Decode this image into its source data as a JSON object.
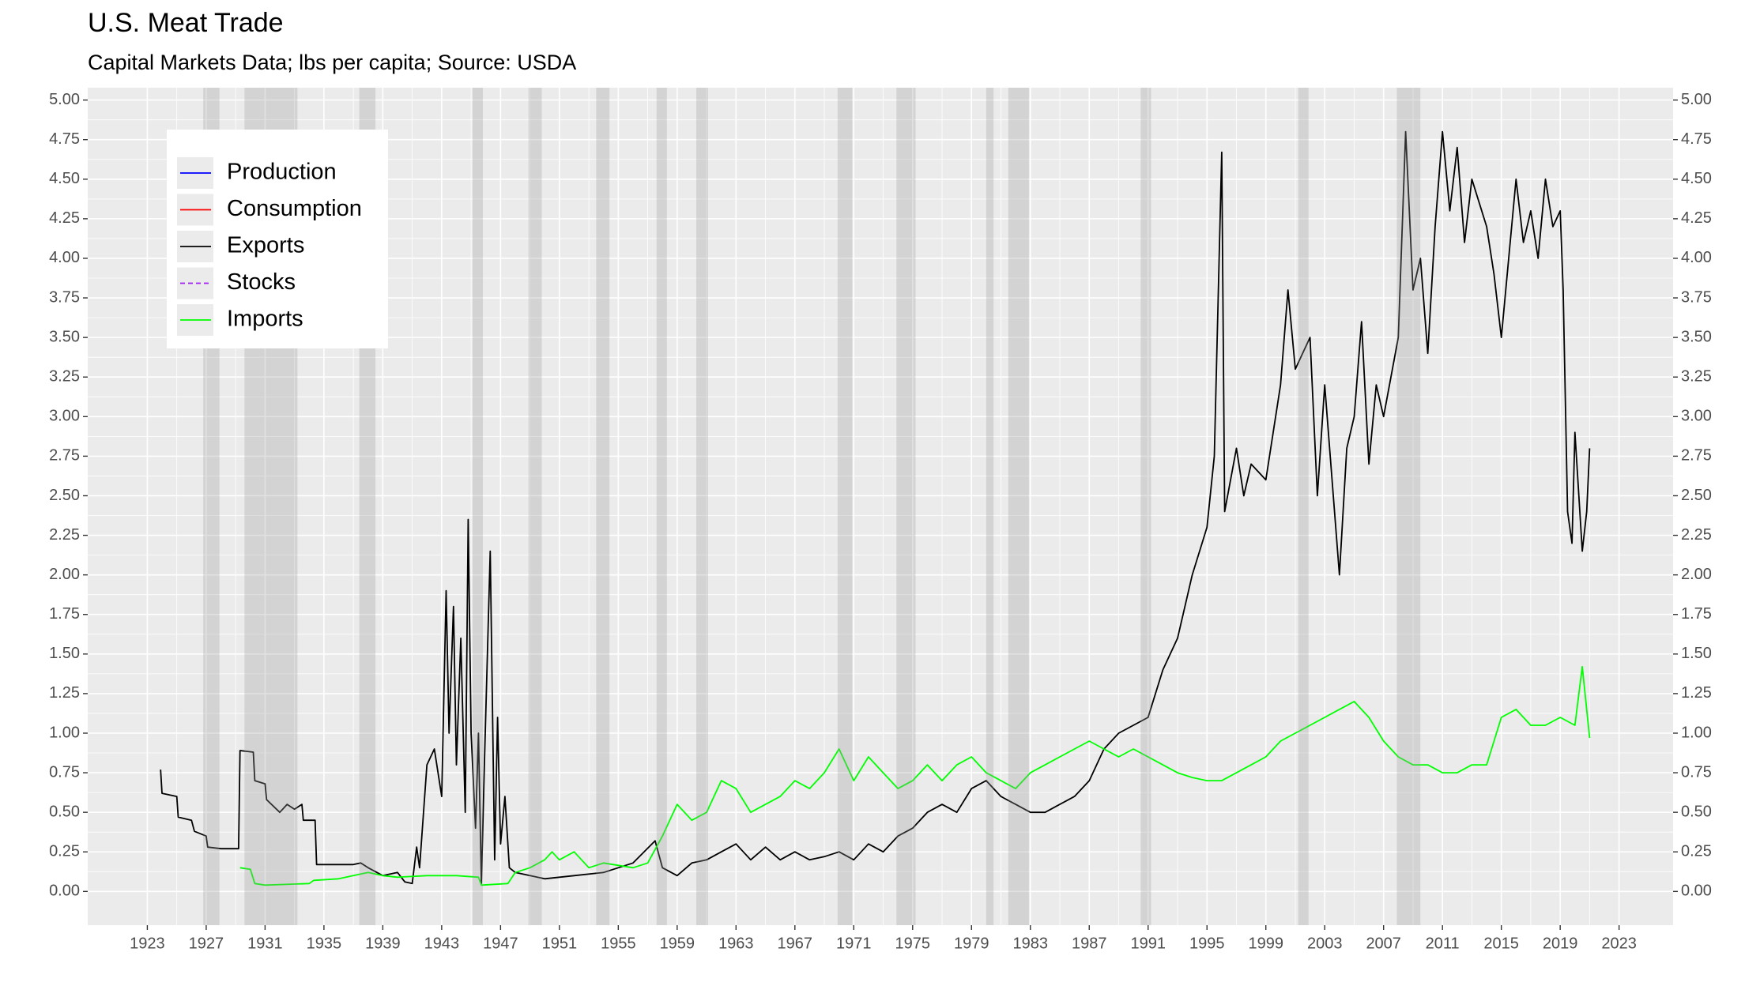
{
  "chart_data": {
    "type": "line",
    "title": "U.S. Meat Trade",
    "subtitle": "Capital Markets Data; lbs per capita; Source: USDA",
    "xlim": [
      1918.95,
      2026.67
    ],
    "ylim": [
      -0.213,
      5.078
    ],
    "y2lim": [
      -0.213,
      5.078
    ],
    "xticks": [
      1923,
      1927,
      1931,
      1935,
      1939,
      1943,
      1947,
      1951,
      1955,
      1959,
      1963,
      1967,
      1971,
      1975,
      1979,
      1983,
      1987,
      1991,
      1995,
      1999,
      2003,
      2007,
      2011,
      2015,
      2019,
      2023
    ],
    "yticks": [
      {
        "value": 0,
        "label": "0.00"
      },
      {
        "value": 0.25,
        "label": "0.25"
      },
      {
        "value": 0.5,
        "label": "0.50"
      },
      {
        "value": 0.75,
        "label": "0.75"
      },
      {
        "value": 1,
        "label": "1.00"
      },
      {
        "value": 1.25,
        "label": "1.25"
      },
      {
        "value": 1.5,
        "label": "1.50"
      },
      {
        "value": 1.75,
        "label": "1.75"
      },
      {
        "value": 2,
        "label": "2.00"
      },
      {
        "value": 2.25,
        "label": "2.25"
      },
      {
        "value": 2.5,
        "label": "2.50"
      },
      {
        "value": 2.75,
        "label": "2.75"
      },
      {
        "value": 3,
        "label": "3.00"
      },
      {
        "value": 3.25,
        "label": "3.25"
      },
      {
        "value": 3.5,
        "label": "3.50"
      },
      {
        "value": 3.75,
        "label": "3.75"
      },
      {
        "value": 4,
        "label": "4.00"
      },
      {
        "value": 4.25,
        "label": "4.25"
      },
      {
        "value": 4.5,
        "label": "4.50"
      },
      {
        "value": 4.75,
        "label": "4.75"
      },
      {
        "value": 5,
        "label": "5.00"
      }
    ],
    "y2ticks": [
      {
        "value": 0,
        "label": "0.00"
      },
      {
        "value": 0.25,
        "label": "0.25"
      },
      {
        "value": 0.5,
        "label": "0.50"
      },
      {
        "value": 0.75,
        "label": "0.75"
      },
      {
        "value": 1,
        "label": "1.00"
      },
      {
        "value": 1.25,
        "label": "1.25"
      },
      {
        "value": 1.5,
        "label": "1.50"
      },
      {
        "value": 1.75,
        "label": "1.75"
      },
      {
        "value": 2,
        "label": "2.00"
      },
      {
        "value": 2.25,
        "label": "2.25"
      },
      {
        "value": 2.5,
        "label": "2.50"
      },
      {
        "value": 2.75,
        "label": "2.75"
      },
      {
        "value": 3,
        "label": "3.00"
      },
      {
        "value": 3.25,
        "label": "3.25"
      },
      {
        "value": 3.5,
        "label": "3.50"
      },
      {
        "value": 3.75,
        "label": "3.75"
      },
      {
        "value": 4,
        "label": "4.00"
      },
      {
        "value": 4.25,
        "label": "4.25"
      },
      {
        "value": 4.5,
        "label": "4.50"
      },
      {
        "value": 4.75,
        "label": "4.75"
      },
      {
        "value": 5,
        "label": "5.00"
      }
    ],
    "grid": true,
    "legend": "top-left",
    "shaded_periods": [
      [
        1926.8,
        1927.9
      ],
      [
        1929.6,
        1933.2
      ],
      [
        1937.4,
        1938.5
      ],
      [
        1945.1,
        1945.8
      ],
      [
        1948.9,
        1949.8
      ],
      [
        1953.5,
        1954.4
      ],
      [
        1957.6,
        1958.3
      ],
      [
        1960.3,
        1961.1
      ],
      [
        1969.9,
        1970.9
      ],
      [
        1973.9,
        1975.2
      ],
      [
        1980.0,
        1980.5
      ],
      [
        1981.5,
        1982.9
      ],
      [
        1990.5,
        1991.2
      ],
      [
        2001.2,
        2001.9
      ],
      [
        2007.9,
        2009.5
      ]
    ],
    "series": [
      {
        "name": "Production",
        "color": "#0000ff",
        "x": [],
        "values": []
      },
      {
        "name": "Consumption",
        "color": "#ff0000",
        "x": [],
        "values": []
      },
      {
        "name": "Exports",
        "color": "#000000",
        "x": [
          1923.9,
          1924,
          1925,
          1925.1,
          1926,
          1926.2,
          1927,
          1927.1,
          1928,
          1929.2,
          1929.3,
          1930.2,
          1930.3,
          1931,
          1931.1,
          1932,
          1932.5,
          1933,
          1933.5,
          1933.6,
          1934.4,
          1934.5,
          1937,
          1937.5,
          1938,
          1939,
          1940,
          1940.5,
          1941,
          1941.3,
          1941.5,
          1942,
          1942.5,
          1943,
          1943.3,
          1943.5,
          1943.8,
          1944,
          1944.3,
          1944.6,
          1944.8,
          1945,
          1945.3,
          1945.5,
          1945.7,
          1945.9,
          1946.3,
          1946.6,
          1946.8,
          1947,
          1947.3,
          1947.6,
          1948,
          1949,
          1950,
          1952,
          1954,
          1956,
          1957.5,
          1958,
          1959,
          1960,
          1961,
          1962,
          1963,
          1964,
          1965,
          1966,
          1967,
          1968,
          1969,
          1970,
          1971,
          1972,
          1973,
          1974,
          1975,
          1976,
          1977,
          1978,
          1979,
          1980,
          1981,
          1982,
          1983,
          1984,
          1985,
          1986,
          1987,
          1988,
          1989,
          1990,
          1991,
          1992,
          1993,
          1994,
          1995,
          1995.5,
          1996,
          1996.2,
          1997,
          1997.5,
          1998,
          1999,
          2000,
          2000.5,
          2001,
          2002,
          2002.5,
          2003,
          2004,
          2004.5,
          2005,
          2005.5,
          2006,
          2006.5,
          2007,
          2008,
          2008.5,
          2009,
          2009.5,
          2010,
          2010.5,
          2011,
          2011.5,
          2012,
          2012.5,
          2013,
          2014,
          2014.5,
          2015,
          2015.5,
          2016,
          2016.5,
          2017,
          2017.5,
          2018,
          2018.5,
          2019,
          2019.2,
          2019.5,
          2019.8,
          2020,
          2020.5,
          2020.8,
          2021
        ],
        "values": [
          0.77,
          0.62,
          0.6,
          0.47,
          0.45,
          0.38,
          0.35,
          0.28,
          0.27,
          0.27,
          0.89,
          0.88,
          0.7,
          0.68,
          0.58,
          0.5,
          0.55,
          0.52,
          0.55,
          0.45,
          0.45,
          0.17,
          0.17,
          0.18,
          0.15,
          0.1,
          0.12,
          0.06,
          0.05,
          0.28,
          0.15,
          0.8,
          0.9,
          0.6,
          1.9,
          1.0,
          1.8,
          0.8,
          1.6,
          0.5,
          2.35,
          1.0,
          0.4,
          1.0,
          0.05,
          0.8,
          2.15,
          0.2,
          1.1,
          0.3,
          0.6,
          0.15,
          0.12,
          0.1,
          0.08,
          0.1,
          0.12,
          0.18,
          0.32,
          0.15,
          0.1,
          0.18,
          0.2,
          0.25,
          0.3,
          0.2,
          0.28,
          0.2,
          0.25,
          0.2,
          0.22,
          0.25,
          0.2,
          0.3,
          0.25,
          0.35,
          0.4,
          0.5,
          0.55,
          0.5,
          0.65,
          0.7,
          0.6,
          0.55,
          0.5,
          0.5,
          0.55,
          0.6,
          0.7,
          0.9,
          1.0,
          1.05,
          1.1,
          1.4,
          1.6,
          2.0,
          2.3,
          2.75,
          4.67,
          2.4,
          2.8,
          2.5,
          2.7,
          2.6,
          3.2,
          3.8,
          3.3,
          3.5,
          2.5,
          3.2,
          2.0,
          2.8,
          3.0,
          3.6,
          2.7,
          3.2,
          3.0,
          3.5,
          4.8,
          3.8,
          4.0,
          3.4,
          4.2,
          4.8,
          4.3,
          4.7,
          4.1,
          4.5,
          4.2,
          3.9,
          3.5,
          4.0,
          4.5,
          4.1,
          4.3,
          4.0,
          4.5,
          4.2,
          4.3,
          3.8,
          2.4,
          2.2,
          2.9,
          2.15,
          2.4,
          2.8
        ]
      },
      {
        "name": "Stocks",
        "color": "#a020f0",
        "linestyle": "dashed",
        "x": [],
        "values": []
      },
      {
        "name": "Imports",
        "color": "#00ff00",
        "x": [
          1929.3,
          1930,
          1930.3,
          1931,
          1934,
          1934.3,
          1936,
          1937,
          1938,
          1939,
          1940,
          1942,
          1944,
          1945.5,
          1945.7,
          1947.5,
          1948,
          1949,
          1950,
          1950.5,
          1951,
          1952,
          1953,
          1954,
          1956,
          1957,
          1958,
          1959,
          1960,
          1961,
          1962,
          1963,
          1964,
          1965,
          1966,
          1967,
          1968,
          1969,
          1970,
          1971,
          1972,
          1973,
          1974,
          1975,
          1976,
          1977,
          1978,
          1979,
          1980,
          1981,
          1982,
          1983,
          1984,
          1985,
          1986,
          1987,
          1988,
          1989,
          1990,
          1991,
          1992,
          1993,
          1994,
          1995,
          1996,
          1997,
          1998,
          1999,
          2000,
          2001,
          2002,
          2003,
          2004,
          2005,
          2006,
          2007,
          2008,
          2009,
          2010,
          2011,
          2012,
          2013,
          2014,
          2015,
          2016,
          2017,
          2018,
          2019,
          2020,
          2020.5,
          2021
        ],
        "values": [
          0.15,
          0.14,
          0.05,
          0.04,
          0.05,
          0.07,
          0.08,
          0.1,
          0.12,
          0.1,
          0.09,
          0.1,
          0.1,
          0.09,
          0.04,
          0.05,
          0.12,
          0.15,
          0.2,
          0.25,
          0.2,
          0.25,
          0.15,
          0.18,
          0.15,
          0.18,
          0.35,
          0.55,
          0.45,
          0.5,
          0.7,
          0.65,
          0.5,
          0.55,
          0.6,
          0.7,
          0.65,
          0.75,
          0.9,
          0.7,
          0.85,
          0.75,
          0.65,
          0.7,
          0.8,
          0.7,
          0.8,
          0.85,
          0.75,
          0.7,
          0.65,
          0.75,
          0.8,
          0.85,
          0.9,
          0.95,
          0.9,
          0.85,
          0.9,
          0.85,
          0.8,
          0.75,
          0.72,
          0.7,
          0.7,
          0.75,
          0.8,
          0.85,
          0.95,
          1.0,
          1.05,
          1.1,
          1.15,
          1.2,
          1.1,
          0.95,
          0.85,
          0.8,
          0.8,
          0.75,
          0.75,
          0.8,
          0.8,
          1.1,
          1.15,
          1.05,
          1.05,
          1.1,
          1.05,
          1.42,
          0.97
        ]
      }
    ]
  }
}
